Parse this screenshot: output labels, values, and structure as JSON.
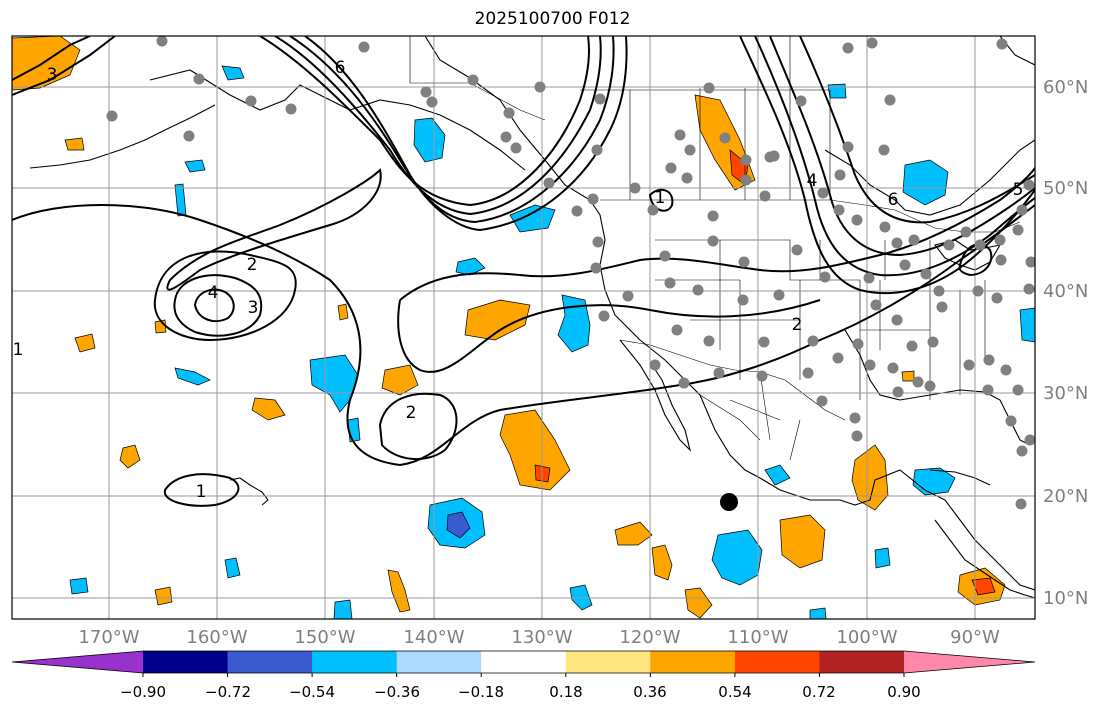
{
  "title": "2025100700 F012",
  "map": {
    "lon_labels": [
      "170°W",
      "160°W",
      "150°W",
      "140°W",
      "130°W",
      "120°W",
      "110°W",
      "100°W",
      "90°W"
    ],
    "lat_labels": [
      "60°N",
      "50°N",
      "40°N",
      "30°N",
      "20°N",
      "10°N"
    ],
    "contour_labels": [
      "6",
      "3",
      "2",
      "4",
      "3",
      "2",
      "1",
      "1",
      "2",
      "4",
      "5",
      "6",
      "1"
    ],
    "marker": "black-dot",
    "station_color": "#808080"
  },
  "colorbar": {
    "ticks": [
      "−0.90",
      "−0.72",
      "−0.54",
      "−0.36",
      "−0.18",
      "0.18",
      "0.36",
      "0.54",
      "0.72",
      "0.90"
    ],
    "colors": [
      "#9932cc",
      "#00008b",
      "#3a5bd0",
      "#00bfff",
      "#add8ff",
      "#ffffff",
      "#ffe680",
      "#ffa500",
      "#ff4500",
      "#b22222",
      "#ff88aa"
    ]
  }
}
